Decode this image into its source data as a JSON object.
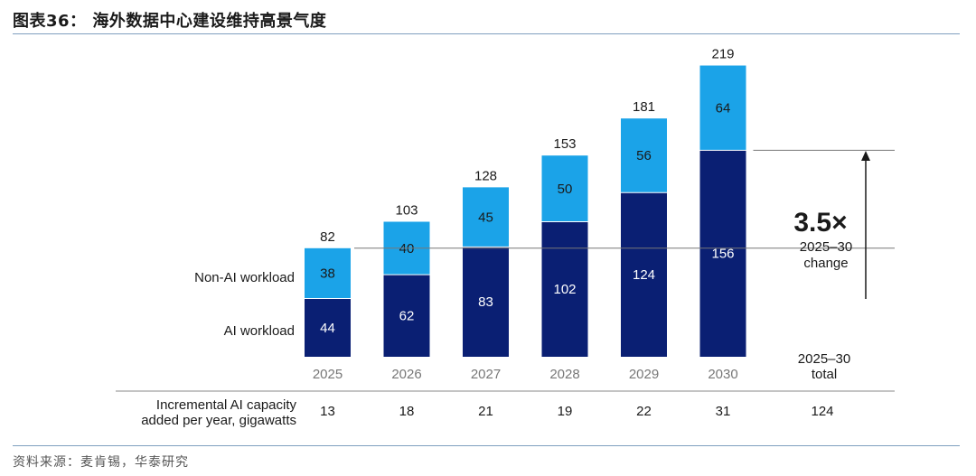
{
  "title": "图表36： 海外数据中心建设维持高景气度",
  "source": "资料来源：麦肯锡，华泰研究",
  "colors": {
    "ai": "#0a1f73",
    "non_ai": "#1ba3e8",
    "axis": "#888888",
    "text": "#1a1a1a"
  },
  "chart_data": {
    "type": "bar",
    "stacked": true,
    "categories": [
      "2025",
      "2026",
      "2027",
      "2028",
      "2029",
      "2030"
    ],
    "series": [
      {
        "name": "AI workload",
        "values": [
          44,
          62,
          83,
          102,
          124,
          156
        ]
      },
      {
        "name": "Non-AI workload",
        "values": [
          38,
          40,
          45,
          50,
          56,
          64
        ]
      }
    ],
    "totals": [
      82,
      103,
      128,
      153,
      181,
      219
    ],
    "ylim": [
      0,
      219
    ],
    "grid": false,
    "annotation": {
      "multiplier": "3.5×",
      "line1": "2025–30",
      "line2": "change"
    },
    "total_header": {
      "line1": "2025–30",
      "line2": "total"
    },
    "increment_label": {
      "line1": "Incremental AI capacity",
      "line2": "added per year, gigawatts"
    },
    "increments": [
      13,
      18,
      21,
      19,
      22,
      31
    ],
    "increment_total": 124
  }
}
